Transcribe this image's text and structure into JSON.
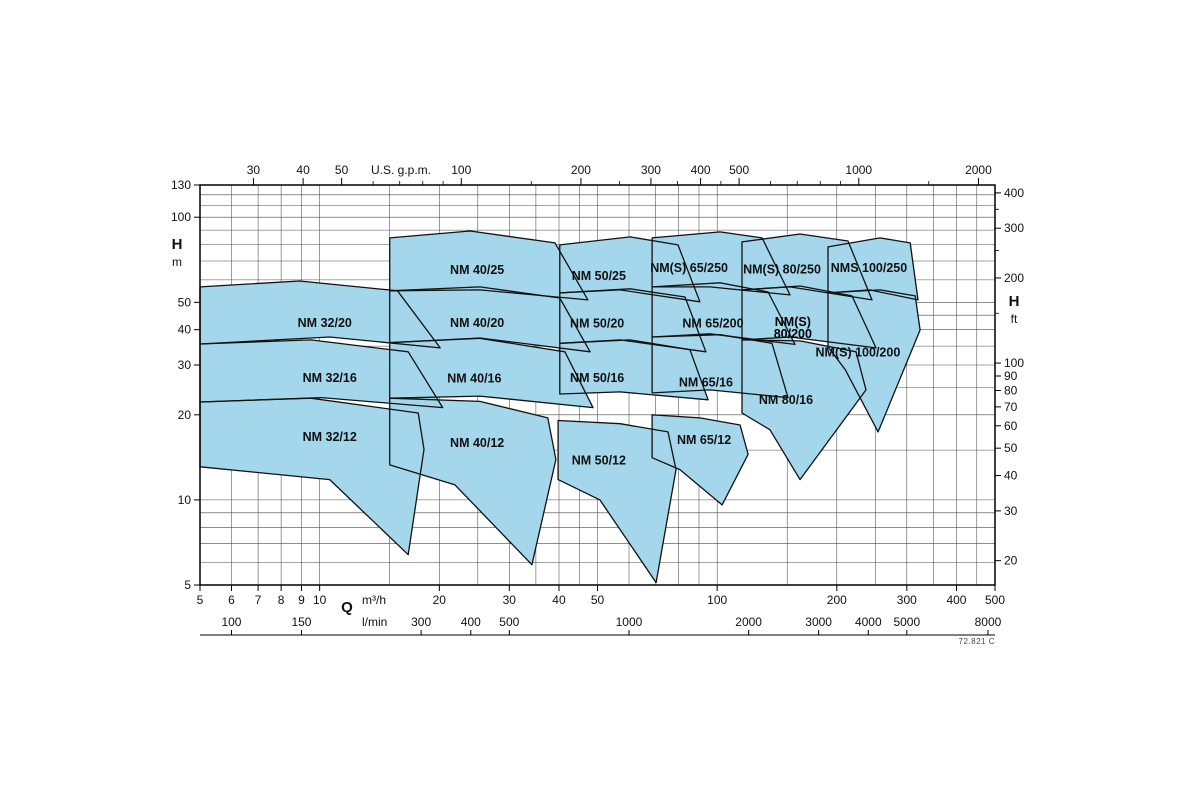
{
  "chart_data": {
    "type": "area",
    "description": "Pump selection chart: Q-H operating envelopes for NM series centrifugal pumps, log-log axes",
    "x_scale": "log",
    "y_scale": "log",
    "x_range_m3h": [
      5,
      500
    ],
    "y_range_m": [
      5,
      130
    ],
    "axes": {
      "top": {
        "unit": "U.S. g.p.m.",
        "ticks": [
          30,
          40,
          50,
          100,
          200,
          300,
          400,
          500,
          1000,
          2000
        ],
        "minor_ticks": [
          60,
          70,
          80,
          90,
          150,
          250,
          350,
          450,
          600,
          700,
          800,
          900,
          1500
        ],
        "gpm_per_m3h": 4.4029
      },
      "left": {
        "label": "H",
        "unit": "m",
        "ticks": [
          130,
          100,
          50,
          40,
          30,
          20,
          10,
          5
        ]
      },
      "right": {
        "label": "H",
        "unit": "ft",
        "ticks": [
          400,
          300,
          200,
          100,
          90,
          80,
          70,
          60,
          50,
          40,
          30,
          20
        ],
        "minor_ticks": [
          350,
          250,
          150
        ],
        "ft_per_m": 3.2808
      },
      "bottom": {
        "label": "Q",
        "unit_primary": "m³/h",
        "unit_secondary": "l/min",
        "ticks_m3h": [
          5,
          6,
          7,
          8,
          9,
          10,
          20,
          30,
          40,
          50,
          100,
          200,
          300,
          400,
          500
        ],
        "ticks_lmin": [
          100,
          150,
          300,
          400,
          500,
          1000,
          2000,
          3000,
          4000,
          5000,
          8000
        ],
        "lmin_per_m3h": 16.6667
      }
    },
    "grid": {
      "v_m3h": [
        6,
        7,
        8,
        9,
        10,
        15,
        20,
        25,
        30,
        35,
        40,
        45,
        50,
        60,
        70,
        80,
        90,
        100,
        150,
        200,
        250,
        300,
        350,
        400,
        450
      ],
      "h_m": [
        6,
        7,
        8,
        9,
        10,
        15,
        20,
        25,
        30,
        35,
        40,
        45,
        50,
        60,
        70,
        80,
        90,
        100,
        110,
        120
      ]
    },
    "regions": [
      {
        "id": "nm-32-12",
        "label": "NM 32/12",
        "label_at": [
          10.6,
          16.7
        ],
        "points": [
          [
            5,
            22.2
          ],
          [
            9.5,
            22.9
          ],
          [
            17.7,
            20.3
          ],
          [
            18.3,
            15.1
          ],
          [
            16.7,
            6.4
          ],
          [
            10.6,
            11.8
          ],
          [
            5,
            13.1
          ]
        ]
      },
      {
        "id": "nm-32-16",
        "label": "NM 32/16",
        "label_at": [
          10.6,
          27.0
        ],
        "points": [
          [
            5,
            35.6
          ],
          [
            9.5,
            36.8
          ],
          [
            16.7,
            33.4
          ],
          [
            20.4,
            21.2
          ],
          [
            10.1,
            23.0
          ],
          [
            5,
            22.2
          ]
        ]
      },
      {
        "id": "nm-32-20",
        "label": "NM 32/20",
        "label_at": [
          10.3,
          42.3
        ],
        "points": [
          [
            5,
            56.7
          ],
          [
            8.9,
            59.5
          ],
          [
            15.7,
            54.9
          ],
          [
            20.1,
            34.5
          ],
          [
            10.6,
            37.7
          ],
          [
            5,
            35.6
          ]
        ]
      },
      {
        "id": "nm-40-12",
        "label": "NM 40/12",
        "label_at": [
          24.9,
          15.9
        ],
        "points": [
          [
            15,
            22.9
          ],
          [
            25.3,
            22.3
          ],
          [
            37.5,
            19.5
          ],
          [
            39.3,
            13.9
          ],
          [
            34.2,
            5.9
          ],
          [
            21.9,
            11.3
          ],
          [
            15,
            13.3
          ]
        ]
      },
      {
        "id": "nm-40-16",
        "label": "NM 40/16",
        "label_at": [
          24.5,
          26.9
        ],
        "points": [
          [
            15,
            36.0
          ],
          [
            25.3,
            37.3
          ],
          [
            41.4,
            33.4
          ],
          [
            48.7,
            21.2
          ],
          [
            25.3,
            23.3
          ],
          [
            15,
            22.9
          ]
        ]
      },
      {
        "id": "nm-40-20",
        "label": "NM 40/20",
        "label_at": [
          24.9,
          42.3
        ],
        "points": [
          [
            15,
            54.9
          ],
          [
            25.3,
            56.7
          ],
          [
            40.2,
            51.8
          ],
          [
            47.9,
            33.4
          ],
          [
            25.3,
            37.4
          ],
          [
            15,
            36.0
          ]
        ]
      },
      {
        "id": "nm-40-25",
        "label": "NM 40/25",
        "label_at": [
          24.9,
          65.1
        ],
        "points": [
          [
            15,
            84.5
          ],
          [
            23.9,
            89.4
          ],
          [
            39.1,
            81.1
          ],
          [
            47.3,
            51.0
          ],
          [
            25.3,
            55.3
          ],
          [
            15,
            54.9
          ]
        ]
      },
      {
        "id": "nm-50-12",
        "label": "NM 50/12",
        "label_at": [
          50.4,
          13.8
        ],
        "points": [
          [
            39.8,
            19.1
          ],
          [
            57,
            18.6
          ],
          [
            75.2,
            17.4
          ],
          [
            78.8,
            12.8
          ],
          [
            70.2,
            5.1
          ],
          [
            50.7,
            10.0
          ],
          [
            39.8,
            11.8
          ]
        ]
      },
      {
        "id": "nm-50-16",
        "label": "NM 50/16",
        "label_at": [
          49.9,
          27.0
        ],
        "points": [
          [
            40.2,
            35.8
          ],
          [
            60.4,
            36.8
          ],
          [
            85.4,
            34.0
          ],
          [
            94.9,
            22.6
          ],
          [
            57,
            24.1
          ],
          [
            40.2,
            23.7
          ]
        ]
      },
      {
        "id": "nm-50-20",
        "label": "NM 50/20",
        "label_at": [
          49.9,
          42.0
        ],
        "points": [
          [
            40.2,
            54.0
          ],
          [
            60.4,
            55.8
          ],
          [
            83,
            52.2
          ],
          [
            93.7,
            33.4
          ],
          [
            57,
            36.8
          ],
          [
            40.2,
            35.8
          ]
        ]
      },
      {
        "id": "nm-50-25",
        "label": "NM 50/25",
        "label_at": [
          50.4,
          62.0
        ],
        "points": [
          [
            40.2,
            79.8
          ],
          [
            60.4,
            85.2
          ],
          [
            79.7,
            79.8
          ],
          [
            90.5,
            50.2
          ],
          [
            57,
            55.3
          ],
          [
            40.2,
            54.0
          ]
        ]
      },
      {
        "id": "nm-65-12",
        "label": "NM 65/12",
        "label_at": [
          92.7,
          16.3
        ],
        "points": [
          [
            68.6,
            20.0
          ],
          [
            90.5,
            19.5
          ],
          [
            114.2,
            18.4
          ],
          [
            119.6,
            14.5
          ],
          [
            102.9,
            9.6
          ],
          [
            80.6,
            12.8
          ],
          [
            68.6,
            14.1
          ]
        ]
      },
      {
        "id": "nm-65-16",
        "label": "NM 65/16",
        "label_at": [
          93.7,
          26.0
        ],
        "points": [
          [
            68.6,
            37.7
          ],
          [
            101.7,
            38.4
          ],
          [
            137.4,
            35.8
          ],
          [
            150.7,
            23.0
          ],
          [
            95.9,
            24.5
          ],
          [
            68.6,
            23.9
          ]
        ]
      },
      {
        "id": "nm-65-200",
        "label": "NM 65/200",
        "label_at": [
          97.6,
          42.0
        ],
        "points": [
          [
            68.6,
            56.7
          ],
          [
            101.7,
            58.6
          ],
          [
            134.3,
            54.4
          ],
          [
            157,
            35.5
          ],
          [
            95.9,
            38.7
          ],
          [
            68.6,
            37.7
          ]
        ]
      },
      {
        "id": "nm-s-65-250",
        "label": "NM(S) 65/250",
        "label_at": [
          85,
          66.2
        ],
        "points": [
          [
            68.6,
            84.5
          ],
          [
            101.7,
            88.7
          ],
          [
            129.7,
            84.5
          ],
          [
            152.5,
            53.1
          ],
          [
            95.9,
            56.7
          ],
          [
            68.6,
            56.7
          ]
        ]
      },
      {
        "id": "nm-80-16",
        "label": "NM 80/16",
        "label_at": [
          149,
          22.6
        ],
        "points": [
          [
            115.5,
            36.8
          ],
          [
            161.6,
            36.5
          ],
          [
            223.5,
            33.4
          ],
          [
            236.8,
            24.5
          ],
          [
            161.6,
            11.8
          ],
          [
            135.8,
            17.7
          ],
          [
            115.5,
            20.3
          ]
        ]
      },
      {
        "id": "nm-s-80-200",
        "label": "NM(S) 80/200",
        "two_line": true,
        "label_at": [
          155,
          40.2
        ],
        "points": [
          [
            115.5,
            55.3
          ],
          [
            161.6,
            57.1
          ],
          [
            218.4,
            52.7
          ],
          [
            250.9,
            34.5
          ],
          [
            152.5,
            37.7
          ],
          [
            115.5,
            36.8
          ]
        ]
      },
      {
        "id": "nm-s-80-250",
        "label": "NM(S) 80/250",
        "label_at": [
          145.6,
          65.4
        ],
        "points": [
          [
            115.5,
            81.8
          ],
          [
            161.6,
            87.2
          ],
          [
            213.4,
            82.4
          ],
          [
            245.2,
            51.0
          ],
          [
            152.5,
            56.7
          ],
          [
            115.5,
            55.3
          ]
        ]
      },
      {
        "id": "nm-s-100-200",
        "label": "NM(S) 100/200",
        "label_at": [
          226,
          33.2
        ],
        "points": [
          [
            190,
            54.0
          ],
          [
            257,
            55.3
          ],
          [
            315,
            52.7
          ],
          [
            324,
            39.9
          ],
          [
            254,
            17.4
          ],
          [
            210,
            28.9
          ],
          [
            190,
            34.8
          ]
        ]
      },
      {
        "id": "nms-100-250",
        "label": "NMS 100/250",
        "label_at": [
          241,
          66.2
        ],
        "points": [
          [
            190,
            78.5
          ],
          [
            257,
            84.5
          ],
          [
            306,
            81.1
          ],
          [
            320,
            51.0
          ],
          [
            242,
            55.3
          ],
          [
            190,
            54.0
          ]
        ]
      }
    ],
    "footer_note": "72.821 C",
    "colors": {
      "region_fill": "#a4d7eb",
      "region_stroke": "#111111",
      "grid": "#4a4a4a",
      "axis": "#000000",
      "text": "#111111"
    }
  }
}
